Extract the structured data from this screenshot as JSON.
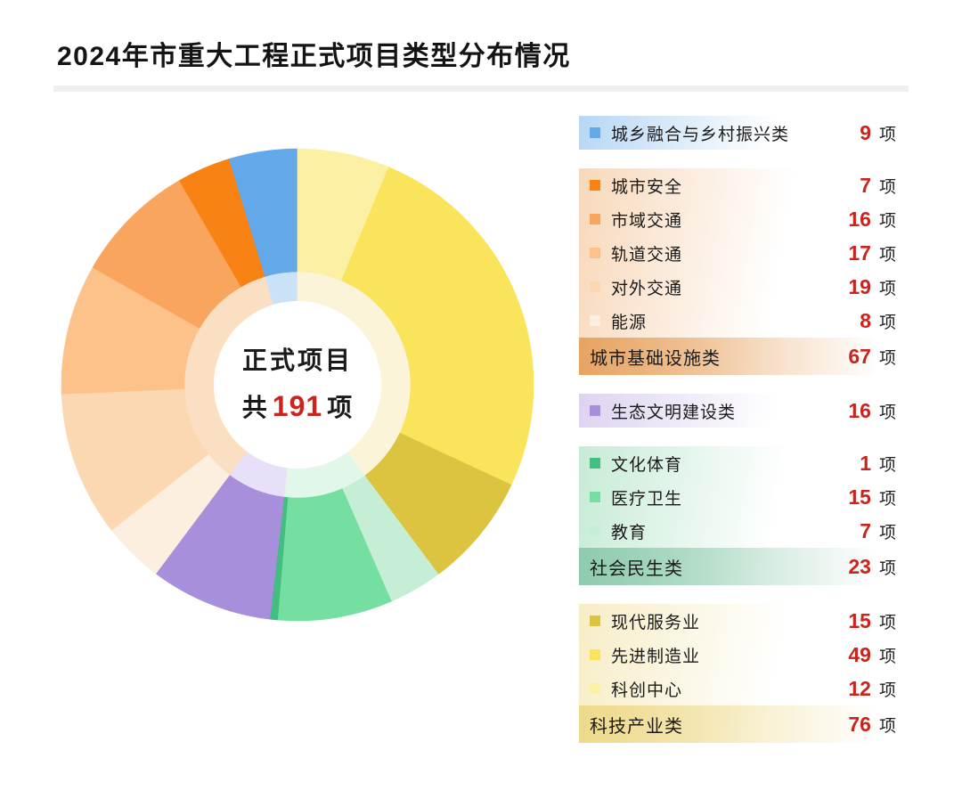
{
  "title": "2024年市重大工程正式项目类型分布情况",
  "accent_red": "#c9241e",
  "divider_color": "#efefef",
  "chart_data": {
    "type": "donut",
    "title": "2024年市重大工程正式项目类型分布情况",
    "total": 191,
    "unit": "项",
    "direction": "counterclockwise",
    "start_angle": "12-oclock",
    "legend_position": "right",
    "center": {
      "line1": "正式项目",
      "prefix": "共",
      "value": "191",
      "suffix": "项"
    },
    "groups": [
      {
        "id": "urban-rural-revitalization",
        "name": "城乡融合与乡村振兴类",
        "value": 9,
        "color": "#63a8e8",
        "light": "#c9e2f8",
        "tint": "#b7d7f4",
        "tint_strong": "#b7d7f4",
        "items": []
      },
      {
        "id": "urban-infrastructure",
        "name": "城市基础设施类",
        "value": 67,
        "color": "#faa55e",
        "light": "#fbdfc2",
        "tint": "#f8d8ba",
        "tint_strong": "#e7a463",
        "items": [
          {
            "id": "city-safety",
            "name": "城市安全",
            "value": 7,
            "color": "#f98214"
          },
          {
            "id": "city-transport",
            "name": "市域交通",
            "value": 16,
            "color": "#faa55e"
          },
          {
            "id": "rail-transit",
            "name": "轨道交通",
            "value": 17,
            "color": "#fcc28a"
          },
          {
            "id": "external-transport",
            "name": "对外交通",
            "value": 19,
            "color": "#fcd8b2"
          },
          {
            "id": "energy",
            "name": "能源",
            "value": 8,
            "color": "#fdefdf"
          }
        ]
      },
      {
        "id": "ecological-civilization",
        "name": "生态文明建设类",
        "value": 16,
        "color": "#a78fdb",
        "light": "#e8e0f8",
        "tint": "#ddd3f1",
        "tint_strong": "#ddd3f1",
        "items": []
      },
      {
        "id": "social-livelihood",
        "name": "社会民生类",
        "value": 23,
        "color": "#75dfa2",
        "light": "#e1f7ea",
        "tint": "#c6ebd6",
        "tint_strong": "#8fcbae",
        "items": [
          {
            "id": "culture-sports",
            "name": "文化体育",
            "value": 1,
            "color": "#41be80"
          },
          {
            "id": "medical-health",
            "name": "医疗卫生",
            "value": 15,
            "color": "#75dfa2"
          },
          {
            "id": "education",
            "name": "教育",
            "value": 7,
            "color": "#c6eed5"
          }
        ]
      },
      {
        "id": "tech-industry",
        "name": "科技产业类",
        "value": 76,
        "color": "#f9e45c",
        "light": "#fcf4d8",
        "tint": "#f7edc6",
        "tint_strong": "#eeda8c",
        "items": [
          {
            "id": "modern-services",
            "name": "现代服务业",
            "value": 15,
            "color": "#dcc441"
          },
          {
            "id": "advanced-manufacturing",
            "name": "先进制造业",
            "value": 49,
            "color": "#f9e45c"
          },
          {
            "id": "innovation-center",
            "name": "科创中心",
            "value": 12,
            "color": "#fbf0a4"
          }
        ]
      }
    ]
  }
}
